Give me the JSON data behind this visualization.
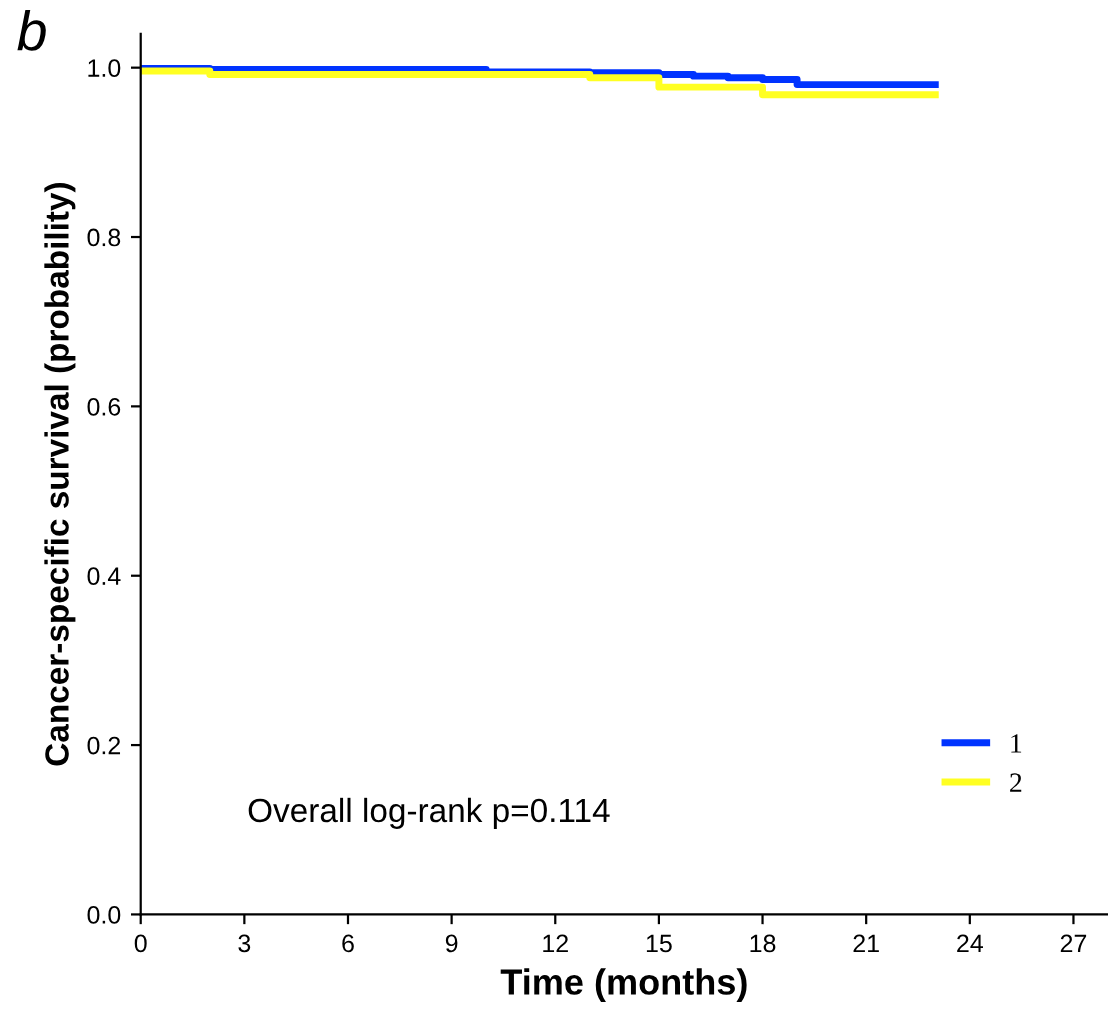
{
  "chart_data": {
    "type": "step",
    "title": "b",
    "xlabel": "Time (months)",
    "ylabel": "Cancer-specific survival (probability)",
    "series": [
      {
        "name": "1",
        "color": "#0033ff",
        "x": [
          0,
          2,
          10,
          13,
          15,
          16,
          17,
          18,
          19,
          23
        ],
        "values": [
          0.999,
          0.998,
          0.995,
          0.994,
          0.992,
          0.99,
          0.988,
          0.986,
          0.98,
          0.98
        ]
      },
      {
        "name": "2",
        "color": "#ffff22",
        "x": [
          0,
          2,
          13,
          15,
          18,
          23
        ],
        "values": [
          0.996,
          0.992,
          0.988,
          0.977,
          0.968,
          0.968
        ]
      }
    ],
    "xlim": [
      0,
      28
    ],
    "ylim": [
      0,
      1.04
    ],
    "xticks": [
      0,
      3,
      6,
      9,
      12,
      15,
      18,
      21,
      24,
      27
    ],
    "yticks": [
      {
        "value": 0,
        "label": "0.0"
      },
      {
        "value": 0.2,
        "label": "0.2"
      },
      {
        "value": 0.4,
        "label": "0.4"
      },
      {
        "value": 0.6,
        "label": "0.6"
      },
      {
        "value": 0.8,
        "label": "0.8"
      },
      {
        "value": 1.0,
        "label": "1.0"
      }
    ],
    "legend": "bottom right",
    "grid": false,
    "annotations": [
      {
        "text": "Overall log-rank p=0.114"
      }
    ]
  }
}
